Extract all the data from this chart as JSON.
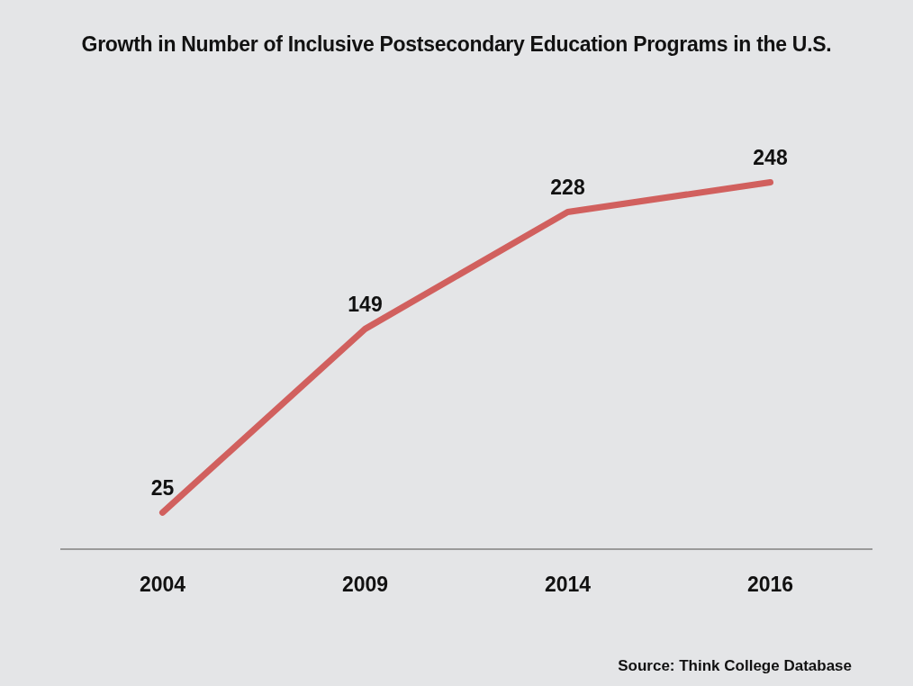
{
  "chart_data": {
    "type": "line",
    "title": "Growth in Number of Inclusive Postsecondary Education Programs in the U.S.",
    "categories": [
      "2004",
      "2009",
      "2014",
      "2016"
    ],
    "series": [
      {
        "color": "#d1605e",
        "values": [
          25,
          149,
          228,
          248
        ]
      }
    ],
    "tick_labels": "x",
    "data_labels": true,
    "grid": false,
    "legend": false,
    "marker": "none",
    "line_style": "solid",
    "annotations": [
      "Source: Think College Database"
    ]
  }
}
